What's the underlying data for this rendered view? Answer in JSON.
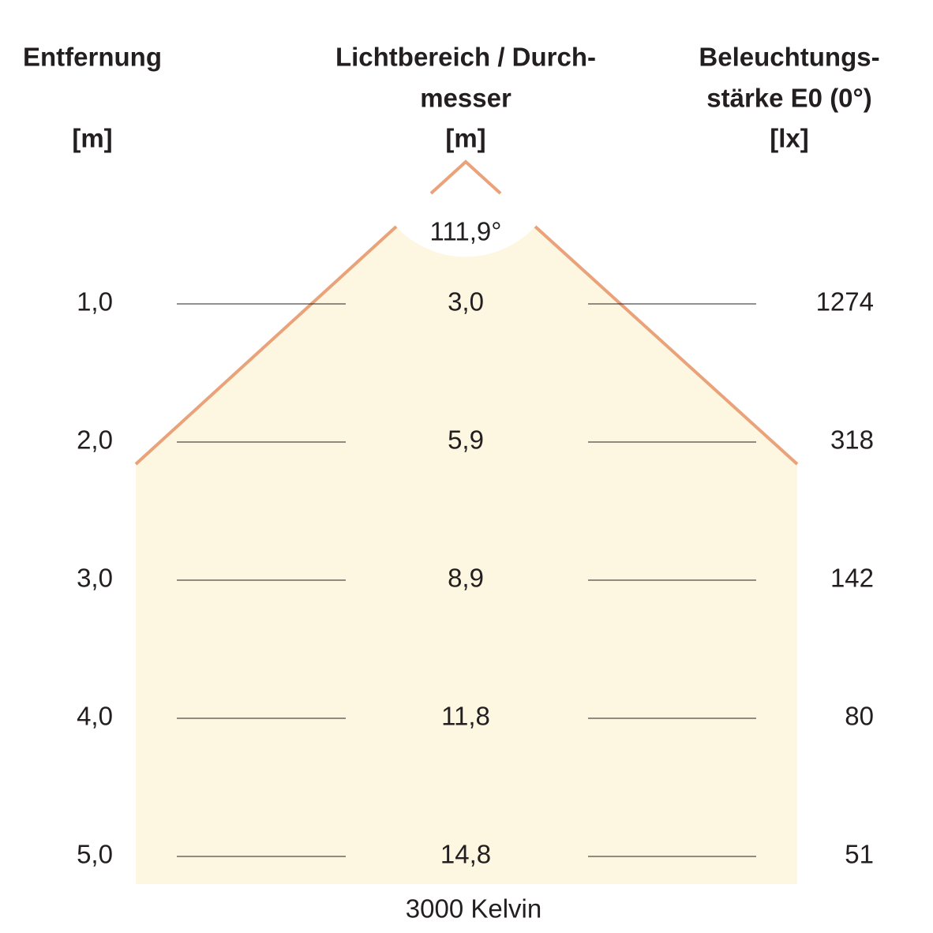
{
  "header": {
    "columns": [
      {
        "lines": [
          "Entfernung"
        ],
        "unit": "[m]"
      },
      {
        "lines": [
          "Lichtbereich / Durch-",
          "messer"
        ],
        "unit": "[m]"
      },
      {
        "lines": [
          "Beleuchtungs-",
          "stärke E0 (0°)"
        ],
        "unit": "[lx]"
      }
    ]
  },
  "beam_angle": "111,9°",
  "rows": [
    [
      "1,0",
      "3,0",
      "1274"
    ],
    [
      "2,0",
      "5,9",
      "318"
    ],
    [
      "3,0",
      "8,9",
      "142"
    ],
    [
      "4,0",
      "11,8",
      "80"
    ],
    [
      "5,0",
      "14,8",
      "51"
    ]
  ],
  "footer": "3000 Kelvin"
}
